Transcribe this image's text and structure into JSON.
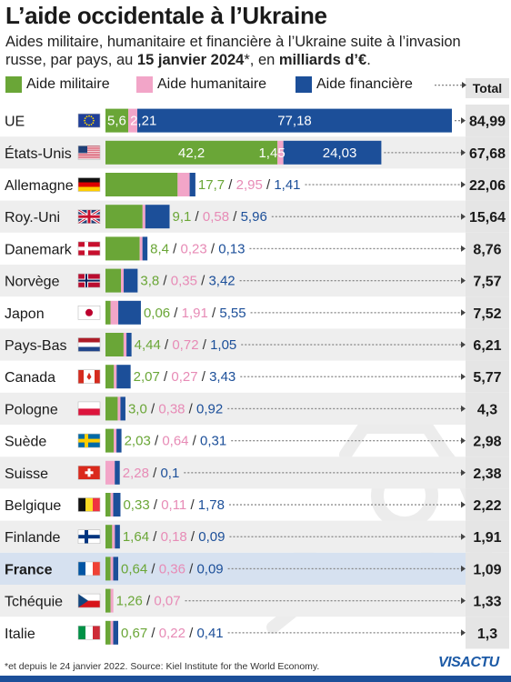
{
  "title": "L’aide occidentale à l’Ukraine",
  "subtitle": {
    "part1": "Aides militaire, humanitaire et financière à l’Ukraine suite à l’invasion russe, par pays, au ",
    "date": "15 janvier 2024",
    "part2": "*, en ",
    "unit": "milliards d’€",
    "part3": "."
  },
  "legend": {
    "military": "Aide militaire",
    "humanitarian": "Aide humanitaire",
    "financial": "Aide financière",
    "total": "Total"
  },
  "colors": {
    "military": "#6aa637",
    "humanitarian": "#f2a5c8",
    "financial": "#1c4f99",
    "row_alt": "#eeeeee",
    "row_highlight": "#d6e1f0",
    "total_bg": "#e5e5e5",
    "humanitarian_text": "#e78bb6"
  },
  "chart_data": {
    "type": "bar",
    "stacked": true,
    "orientation": "horizontal",
    "categories": [
      "UE",
      "États-Unis",
      "Allemagne",
      "Roy.-Uni",
      "Danemark",
      "Norvège",
      "Japon",
      "Pays-Bas",
      "Canada",
      "Pologne",
      "Suède",
      "Suisse",
      "Belgique",
      "Finlande",
      "France",
      "Tchéquie",
      "Italie"
    ],
    "flags": [
      "eu-flag",
      "us-flag",
      "de-flag",
      "uk-flag",
      "dk-flag",
      "no-flag",
      "jp-flag",
      "nl-flag",
      "ca-flag",
      "pl-flag",
      "se-flag",
      "ch-flag",
      "be-flag",
      "fi-flag",
      "fr-flag",
      "cz-flag",
      "it-flag"
    ],
    "series": [
      {
        "name": "Aide militaire",
        "values": [
          5.6,
          42.2,
          17.7,
          9.1,
          8.4,
          3.8,
          0.06,
          4.44,
          2.07,
          3.0,
          2.03,
          0,
          0.33,
          1.64,
          0.64,
          1.26,
          0.67
        ]
      },
      {
        "name": "Aide humanitaire",
        "values": [
          2.21,
          1.45,
          2.95,
          0.58,
          0.23,
          0.35,
          1.91,
          0.72,
          0.27,
          0.38,
          0.64,
          2.28,
          0.11,
          0.18,
          0.36,
          0.07,
          0.22
        ]
      },
      {
        "name": "Aide financière",
        "values": [
          77.18,
          24.03,
          1.41,
          5.96,
          0.13,
          3.42,
          5.55,
          1.05,
          3.43,
          0.92,
          0.31,
          0.1,
          1.78,
          0.09,
          0.09,
          0,
          0.41
        ]
      }
    ],
    "totals": [
      "84,99",
      "67,68",
      "22,06",
      "15,64",
      "8,76",
      "7,57",
      "7,52",
      "6,21",
      "5,77",
      "4,3",
      "2,98",
      "2,38",
      "2,22",
      "1,91",
      "1,09",
      "1,33",
      "1,3"
    ],
    "labels": [
      [
        "5,6",
        "2,21",
        "77,18"
      ],
      [
        "42,2",
        "1,45",
        "24,03"
      ],
      [
        "17,7",
        "2,95",
        "1,41"
      ],
      [
        "9,1",
        "0,58",
        "5,96"
      ],
      [
        "8,4",
        "0,23",
        "0,13"
      ],
      [
        "3,8",
        "0,35",
        "3,42"
      ],
      [
        "0,06",
        "1,91",
        "5,55"
      ],
      [
        "4,44",
        "0,72",
        "1,05"
      ],
      [
        "2,07",
        "0,27",
        "3,43"
      ],
      [
        "3,0",
        "0,38",
        "0,92"
      ],
      [
        "2,03",
        "0,64",
        "0,31"
      ],
      [
        "",
        "2,28",
        "0,1"
      ],
      [
        "0,33",
        "0,11",
        "1,78"
      ],
      [
        "1,64",
        "0,18",
        "0,09"
      ],
      [
        "0,64",
        "0,36",
        "0,09"
      ],
      [
        "1,26",
        "0,07",
        ""
      ],
      [
        "0,67",
        "0,22",
        "0,41"
      ]
    ],
    "highlight": "France",
    "title": "L’aide occidentale à l’Ukraine",
    "xlabel": "",
    "ylabel": "",
    "legend_position": "top"
  },
  "footnote": "*et depuis le 24 janvier 2022. Source: Kiel Institute for the World Economy.",
  "logo": "VISACTU"
}
